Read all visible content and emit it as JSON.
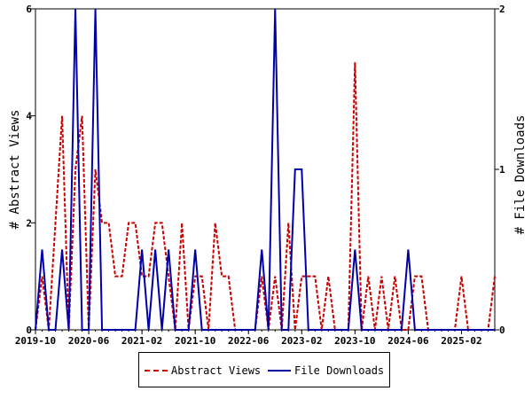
{
  "chart_data": {
    "type": "line",
    "x_labels": [
      "2019-10",
      "2020-06",
      "2021-02",
      "2021-10",
      "2022-06",
      "2023-02",
      "2023-10",
      "2024-06",
      "2025-02"
    ],
    "y_left": {
      "label": "# Abstract Views",
      "range": [
        0,
        6
      ],
      "ticks": [
        "0",
        "2",
        "4",
        "6"
      ]
    },
    "y_right": {
      "label": "# File Downloads",
      "range": [
        0,
        2
      ],
      "ticks": [
        "0",
        "1",
        "2"
      ]
    },
    "months": [
      "2019-10",
      "2019-11",
      "2019-12",
      "2020-01",
      "2020-02",
      "2020-03",
      "2020-04",
      "2020-05",
      "2020-06",
      "2020-07",
      "2020-08",
      "2020-09",
      "2020-10",
      "2020-11",
      "2020-12",
      "2021-01",
      "2021-02",
      "2021-03",
      "2021-04",
      "2021-05",
      "2021-06",
      "2021-07",
      "2021-08",
      "2021-09",
      "2021-10",
      "2021-11",
      "2021-12",
      "2022-01",
      "2022-02",
      "2022-03",
      "2022-04",
      "2022-05",
      "2022-06",
      "2022-07",
      "2022-08",
      "2022-09",
      "2022-10",
      "2022-11",
      "2022-12",
      "2023-01",
      "2023-02",
      "2023-03",
      "2023-04",
      "2023-05",
      "2023-06",
      "2023-07",
      "2023-08",
      "2023-09",
      "2023-10",
      "2023-11",
      "2023-12",
      "2024-01",
      "2024-02",
      "2024-03",
      "2024-04",
      "2024-05",
      "2024-06",
      "2024-07",
      "2024-08",
      "2024-09",
      "2024-10",
      "2024-11",
      "2024-12",
      "2025-01",
      "2025-02",
      "2025-03",
      "2025-04",
      "2025-05",
      "2025-06",
      "2025-07"
    ],
    "series": [
      {
        "name": "Abstract Views",
        "axis": "left",
        "color": "#cc0000",
        "style": "dashed",
        "values": [
          0,
          1,
          0,
          2,
          4,
          0,
          3,
          4,
          0,
          3,
          2,
          2,
          1,
          1,
          2,
          2,
          1,
          1,
          2,
          2,
          1,
          0,
          2,
          0,
          1,
          1,
          0,
          2,
          1,
          1,
          0,
          0,
          0,
          0,
          1,
          0,
          1,
          0,
          2,
          0,
          1,
          1,
          1,
          0,
          1,
          0,
          0,
          0,
          5,
          0,
          1,
          0,
          1,
          0,
          1,
          0,
          0,
          1,
          1,
          0,
          0,
          0,
          0,
          0,
          1,
          0,
          0,
          0,
          0,
          1
        ]
      },
      {
        "name": "File Downloads",
        "axis": "right",
        "color": "#0000aa",
        "style": "solid",
        "values": [
          0,
          0.5,
          0,
          0,
          0.5,
          0,
          2,
          0,
          0,
          2,
          0,
          0,
          0,
          0,
          0,
          0,
          0.5,
          0,
          0.5,
          0,
          0.5,
          0,
          0,
          0,
          0.5,
          0,
          0,
          0,
          0,
          0,
          0,
          0,
          0,
          0,
          0.5,
          0,
          2,
          0,
          0,
          1,
          1,
          0,
          0,
          0,
          0,
          0,
          0,
          0,
          0.5,
          0,
          0,
          0,
          0,
          0,
          0,
          0,
          0.5,
          0,
          0,
          0,
          0,
          0,
          0,
          0,
          0,
          0,
          0,
          0,
          0,
          0
        ]
      }
    ],
    "grid": false,
    "legend_position": "bottom"
  },
  "legend": {
    "abstract_label": "Abstract Views",
    "downloads_label": "File Downloads"
  },
  "colors": {
    "abstract": "#cc0000",
    "downloads": "#0000aa"
  }
}
